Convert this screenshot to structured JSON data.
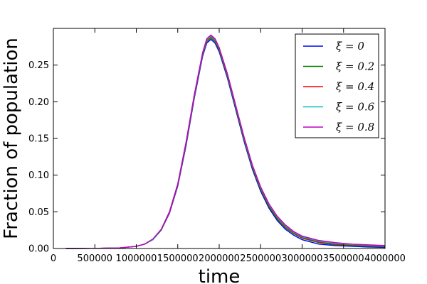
{
  "chart_data": {
    "type": "line",
    "title": "",
    "xlabel": "time",
    "ylabel": "Fraction of population",
    "xlim": [
      0,
      4000000
    ],
    "ylim": [
      0,
      0.3
    ],
    "x_ticks": [
      0,
      500000,
      1000000,
      1500000,
      2000000,
      2500000,
      3000000,
      3500000,
      4000000
    ],
    "x_tick_labels": [
      "0",
      "500000",
      "1000000",
      "1500000",
      "2000000",
      "2500000",
      "3000000",
      "3500000",
      "4000000"
    ],
    "y_ticks": [
      0,
      0.05,
      0.1,
      0.15,
      0.2,
      0.25
    ],
    "y_tick_labels": [
      "0.00",
      "0.05",
      "0.10",
      "0.15",
      "0.20",
      "0.25"
    ],
    "grid": false,
    "legend_position": "top-right",
    "x": [
      150000,
      500000,
      800000,
      1000000,
      1100000,
      1200000,
      1300000,
      1400000,
      1500000,
      1600000,
      1700000,
      1800000,
      1850000,
      1900000,
      1950000,
      2000000,
      2100000,
      2200000,
      2300000,
      2400000,
      2500000,
      2600000,
      2700000,
      2800000,
      2900000,
      3000000,
      3200000,
      3400000,
      3600000,
      3800000,
      4000000
    ],
    "series": [
      {
        "name": "ξ = 0",
        "color": "#0000ff",
        "values": [
          0,
          0.0002,
          0.0008,
          0.003,
          0.006,
          0.012,
          0.025,
          0.048,
          0.085,
          0.14,
          0.205,
          0.262,
          0.28,
          0.285,
          0.28,
          0.268,
          0.232,
          0.189,
          0.146,
          0.108,
          0.078,
          0.055,
          0.038,
          0.026,
          0.018,
          0.012,
          0.006,
          0.004,
          0.003,
          0.002,
          0.0015
        ]
      },
      {
        "name": "ξ = 0.2",
        "color": "#008000",
        "values": [
          0,
          0.0002,
          0.0008,
          0.003,
          0.006,
          0.012,
          0.025,
          0.049,
          0.086,
          0.142,
          0.207,
          0.264,
          0.282,
          0.287,
          0.282,
          0.27,
          0.234,
          0.191,
          0.148,
          0.11,
          0.08,
          0.057,
          0.04,
          0.028,
          0.02,
          0.014,
          0.008,
          0.005,
          0.004,
          0.003,
          0.0025
        ]
      },
      {
        "name": "ξ = 0.4",
        "color": "#ff0000",
        "values": [
          0,
          0.0002,
          0.0008,
          0.003,
          0.006,
          0.012,
          0.026,
          0.049,
          0.087,
          0.143,
          0.208,
          0.265,
          0.284,
          0.289,
          0.284,
          0.272,
          0.236,
          0.193,
          0.15,
          0.112,
          0.082,
          0.059,
          0.042,
          0.03,
          0.021,
          0.015,
          0.009,
          0.006,
          0.005,
          0.004,
          0.003
        ]
      },
      {
        "name": "ξ = 0.6",
        "color": "#00bfbf",
        "values": [
          0,
          0.0002,
          0.0008,
          0.003,
          0.006,
          0.012,
          0.026,
          0.05,
          0.088,
          0.144,
          0.209,
          0.266,
          0.285,
          0.29,
          0.285,
          0.273,
          0.237,
          0.194,
          0.151,
          0.113,
          0.083,
          0.06,
          0.043,
          0.031,
          0.022,
          0.016,
          0.01,
          0.007,
          0.0055,
          0.0045,
          0.0035
        ]
      },
      {
        "name": "ξ = 0.8",
        "color": "#bf00bf",
        "values": [
          0,
          0.0002,
          0.0008,
          0.003,
          0.006,
          0.013,
          0.026,
          0.05,
          0.088,
          0.145,
          0.21,
          0.267,
          0.286,
          0.291,
          0.286,
          0.274,
          0.238,
          0.195,
          0.152,
          0.114,
          0.084,
          0.061,
          0.044,
          0.032,
          0.023,
          0.017,
          0.011,
          0.008,
          0.006,
          0.005,
          0.004
        ]
      }
    ]
  }
}
